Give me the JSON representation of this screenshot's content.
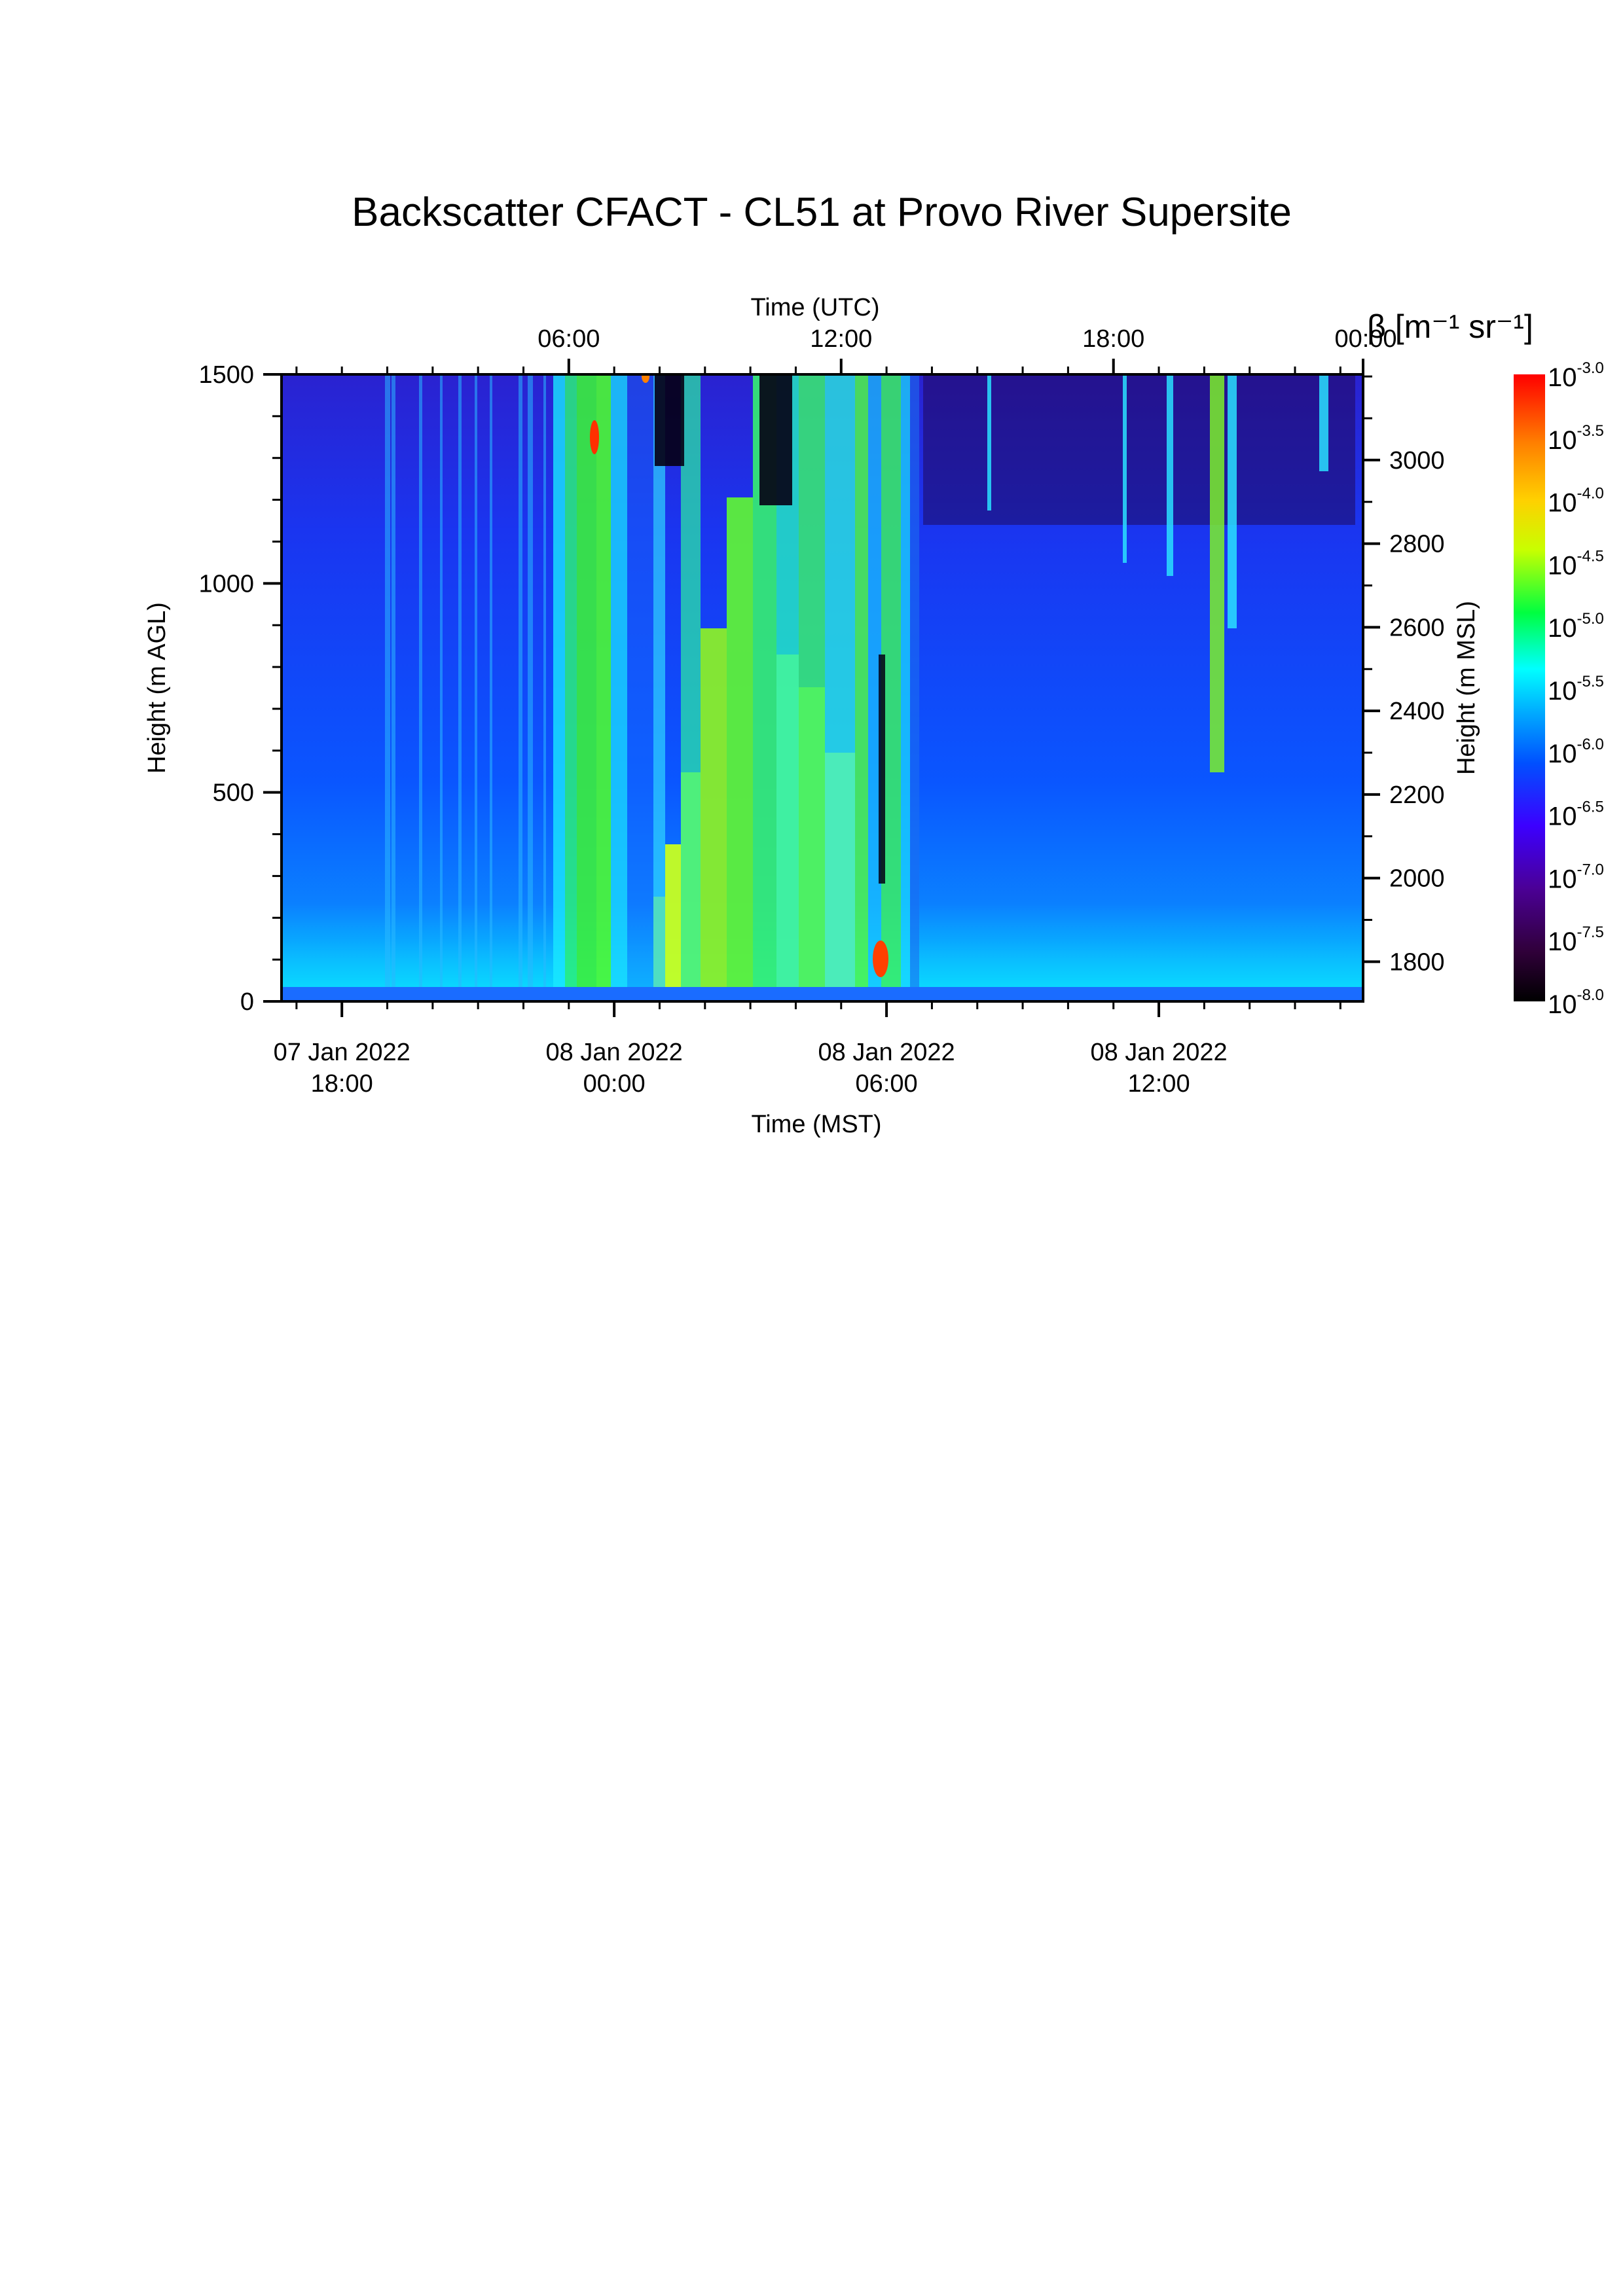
{
  "chart_data": {
    "type": "heatmap",
    "title": "Backscatter CFACT - CL51 at Provo River Supersite",
    "colorbar_label": "β [m⁻¹ sr⁻¹]",
    "colorbar_base": "10",
    "colorbar_exponents": [
      "-3.0",
      "-3.5",
      "-4.0",
      "-4.5",
      "-5.0",
      "-5.5",
      "-6.0",
      "-6.5",
      "-7.0",
      "-7.5",
      "-8.0"
    ],
    "colorbar_range": [
      -8.0,
      -3.0
    ],
    "xlabel_bottom": "Time (MST)",
    "xlabel_top": "Time (UTC)",
    "ylabel_left": "Height (m AGL)",
    "ylabel_right": "Height (m MSL)",
    "x_range_mst_hours": [
      16.67,
      40.5
    ],
    "x_ticks_bottom": [
      {
        "hour": 18,
        "line1": "07 Jan 2022",
        "line2": "18:00"
      },
      {
        "hour": 24,
        "line1": "08 Jan 2022",
        "line2": "00:00"
      },
      {
        "hour": 30,
        "line1": "08 Jan 2022",
        "line2": "06:00"
      },
      {
        "hour": 36,
        "line1": "08 Jan 2022",
        "line2": "12:00"
      }
    ],
    "x_ticks_top": [
      {
        "hour": 23,
        "label": "06:00"
      },
      {
        "hour": 29,
        "label": "12:00"
      },
      {
        "hour": 35,
        "label": "18:00"
      },
      {
        "hour": 41,
        "label": "00:00"
      }
    ],
    "y_left_range": [
      0,
      1500
    ],
    "y_left_ticks": [
      "0",
      "500",
      "1000",
      "1500"
    ],
    "y_right_ticks": [
      "1800",
      "2000",
      "2200",
      "2400",
      "2600",
      "2800",
      "3000"
    ],
    "site_elevation_m": 1705,
    "colors": {
      "colormap": [
        "#000000",
        "#30003a",
        "#4b0096",
        "#3c00ff",
        "#0050ff",
        "#00aaff",
        "#00ffff",
        "#00ff40",
        "#c8ff00",
        "#ffd000",
        "#ff8000",
        "#ff0000"
      ]
    }
  }
}
